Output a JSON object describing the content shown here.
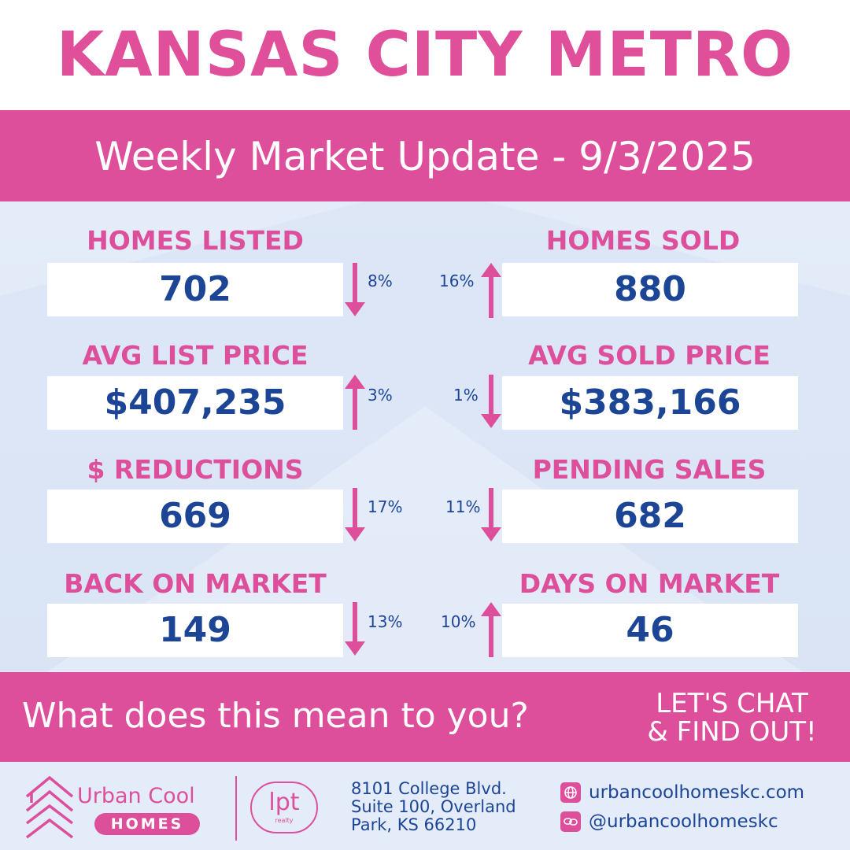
{
  "header": {
    "title": "KANSAS CITY METRO",
    "subtitle": "Weekly Market Update - 9/3/2025"
  },
  "colors": {
    "pink": "#dd4f9b",
    "navy": "#1c4596",
    "background": "#e3ebf8",
    "white": "#ffffff"
  },
  "stats": {
    "homes_listed": {
      "label": "HOMES LISTED",
      "value": "702",
      "change": "8%",
      "direction": "down"
    },
    "homes_sold": {
      "label": "HOMES SOLD",
      "value": "880",
      "change": "16%",
      "direction": "up"
    },
    "avg_list_price": {
      "label": "AVG LIST PRICE",
      "value": "$407,235",
      "change": "3%",
      "direction": "up"
    },
    "avg_sold_price": {
      "label": "AVG SOLD PRICE",
      "value": "$383,166",
      "change": "1%",
      "direction": "down"
    },
    "reductions": {
      "label": "$ REDUCTIONS",
      "value": "669",
      "change": "17%",
      "direction": "down"
    },
    "pending_sales": {
      "label": "PENDING SALES",
      "value": "682",
      "change": "11%",
      "direction": "down"
    },
    "back_on_market": {
      "label": "BACK ON MARKET",
      "value": "149",
      "change": "13%",
      "direction": "down"
    },
    "days_on_market": {
      "label": "DAYS ON MARKET",
      "value": "46",
      "change": "10%",
      "direction": "up"
    }
  },
  "cta": {
    "question": "What does this mean to you?",
    "chat_line1": "LET'S CHAT",
    "chat_line2": "& FIND OUT!"
  },
  "footer": {
    "brand_name": "Urban Cool",
    "brand_sub": "HOMES",
    "partner_logo": "lpt",
    "partner_sub": "realty",
    "address_line1": "8101 College Blvd.",
    "address_line2": "Suite 100, Overland",
    "address_line3": "Park, KS 66210",
    "website": "urbancoolhomeskc.com",
    "website_icon": "globe-icon",
    "social": "@urbancoolhomeskc",
    "social_icon": "link-icon"
  }
}
